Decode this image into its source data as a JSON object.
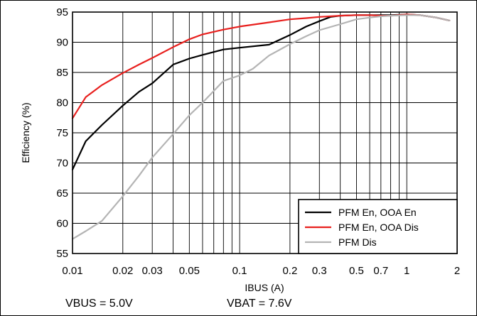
{
  "chart_data": {
    "type": "line",
    "xscale": "log",
    "xlim": [
      0.01,
      2
    ],
    "ylim": [
      55,
      95
    ],
    "xlabel": "IBUS (A)",
    "ylabel": "Efficiency (%)",
    "title": "",
    "grid": true,
    "legend_position": "bottom-right",
    "x_ticks": [
      0.01,
      0.02,
      0.03,
      0.05,
      0.1,
      0.2,
      0.3,
      0.5,
      0.7,
      1,
      2
    ],
    "x_tick_labels": [
      "0.01",
      "0.02",
      "0.03",
      "0.05",
      "0.1",
      "0.2",
      "0.3",
      "0.5",
      "0.7",
      "1",
      "2"
    ],
    "y_ticks": [
      55,
      60,
      65,
      70,
      75,
      80,
      85,
      90,
      95
    ],
    "y_tick_labels": [
      "55",
      "60",
      "65",
      "70",
      "75",
      "80",
      "85",
      "90",
      "95"
    ],
    "series": [
      {
        "name": "PFM En, OOA En",
        "color": "#000000",
        "x": [
          0.01,
          0.012,
          0.015,
          0.02,
          0.025,
          0.03,
          0.04,
          0.05,
          0.06,
          0.08,
          0.1,
          0.15,
          0.2,
          0.25,
          0.3,
          0.35,
          0.4,
          0.5,
          0.6,
          0.7,
          0.8,
          1.0,
          1.2,
          1.5,
          1.8
        ],
        "y": [
          68.9,
          73.6,
          76.3,
          79.5,
          81.8,
          83.2,
          86.3,
          87.3,
          87.9,
          88.8,
          89.1,
          89.6,
          91.2,
          92.6,
          93.5,
          94.2,
          94.4,
          94.5,
          94.5,
          94.5,
          94.5,
          94.6,
          94.5,
          94.1,
          93.6
        ]
      },
      {
        "name": "PFM En, OOA Dis",
        "color": "#e8201e",
        "x": [
          0.01,
          0.012,
          0.015,
          0.02,
          0.025,
          0.03,
          0.04,
          0.05,
          0.06,
          0.08,
          0.1,
          0.15,
          0.2,
          0.25,
          0.3,
          0.4,
          0.5,
          0.6,
          0.7,
          0.8,
          1.0,
          1.2,
          1.5,
          1.8
        ],
        "y": [
          77.4,
          80.9,
          82.9,
          84.9,
          86.3,
          87.4,
          89.2,
          90.5,
          91.3,
          92.1,
          92.6,
          93.3,
          93.8,
          94.0,
          94.2,
          94.4,
          94.5,
          94.5,
          94.4,
          94.4,
          94.6,
          94.5,
          94.1,
          93.6
        ]
      },
      {
        "name": "PFM Dis",
        "color": "#b4b4b4",
        "x": [
          0.01,
          0.012,
          0.015,
          0.02,
          0.025,
          0.03,
          0.04,
          0.05,
          0.06,
          0.08,
          0.1,
          0.12,
          0.15,
          0.2,
          0.25,
          0.3,
          0.4,
          0.5,
          0.6,
          0.7,
          0.8,
          1.0,
          1.2,
          1.5,
          1.8
        ],
        "y": [
          57.4,
          58.7,
          60.4,
          64.5,
          67.9,
          70.9,
          74.8,
          77.9,
          80.0,
          83.6,
          84.5,
          85.6,
          87.8,
          89.7,
          91.0,
          92.0,
          93.0,
          93.8,
          94.1,
          94.3,
          94.4,
          94.5,
          94.5,
          94.1,
          93.6
        ]
      }
    ],
    "annotations": [
      "VBUS = 5.0V",
      "VBAT = 7.6V"
    ]
  }
}
